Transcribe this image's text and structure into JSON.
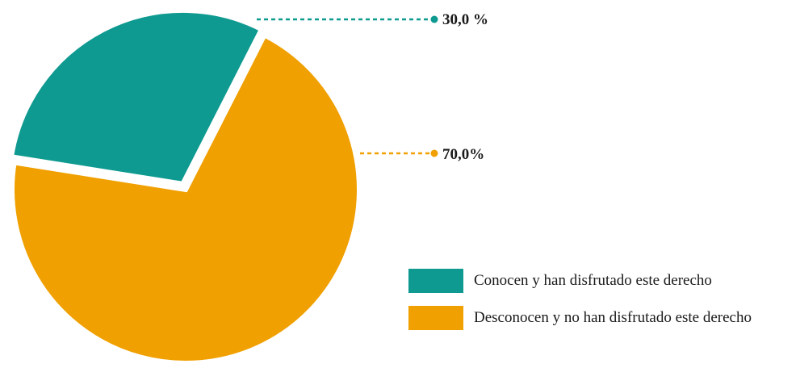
{
  "chart_data": {
    "type": "pie",
    "title": "",
    "slices": [
      {
        "name": "Conocen y han disfrutado este derecho",
        "value": 30.0,
        "label": "30,0 %",
        "color": "#0e9a90"
      },
      {
        "name": "Desconocen y no han disfrutado este derecho",
        "value": 70.0,
        "label": "70,0%",
        "color": "#f0a000"
      }
    ],
    "legend": {
      "position": "bottom-right"
    }
  }
}
